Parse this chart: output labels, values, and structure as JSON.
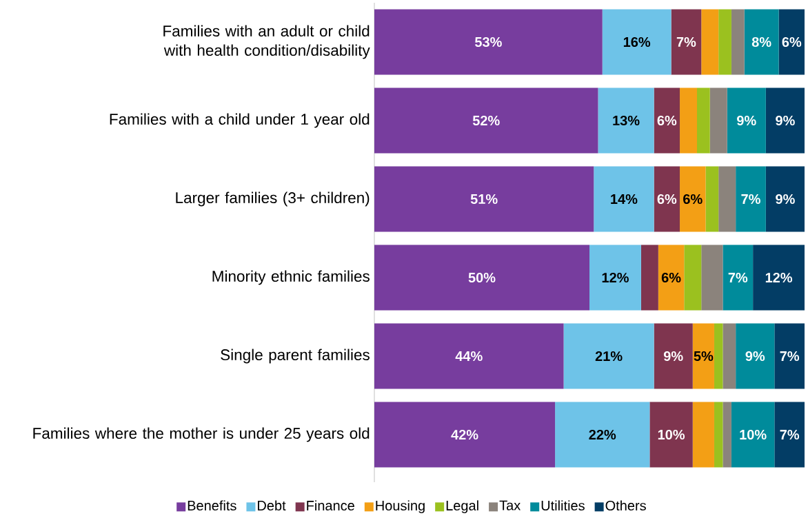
{
  "chart_data": {
    "type": "bar",
    "orientation": "horizontal",
    "stacked": true,
    "categories": [
      "Families with an adult or child with health condition/disability",
      "Families with a child under 1 year old",
      "Larger families (3+ children)",
      "Minority ethnic families",
      "Single parent families",
      "Families where the mother is under 25 years old"
    ],
    "series": [
      {
        "name": "Benefits",
        "color": "#773d9e",
        "values": [
          53,
          52,
          51,
          50,
          44,
          42
        ],
        "value_labels": [
          "53%",
          "52%",
          "51%",
          "50%",
          "44%",
          "42%"
        ]
      },
      {
        "name": "Debt",
        "color": "#6ec3e8",
        "values": [
          16,
          13,
          14,
          12,
          21,
          22
        ],
        "value_labels": [
          "16%",
          "13%",
          "14%",
          "12%",
          "21%",
          "22%"
        ]
      },
      {
        "name": "Finance",
        "color": "#7f354f",
        "values": [
          7,
          6,
          6,
          4,
          9,
          10
        ],
        "value_labels": [
          "7%",
          "6%",
          "6%",
          null,
          "9%",
          "10%"
        ]
      },
      {
        "name": "Housing",
        "color": "#f39f15",
        "values": [
          4,
          4,
          6,
          6,
          5,
          5
        ],
        "value_labels": [
          null,
          null,
          "6%",
          "6%",
          "5%",
          null
        ]
      },
      {
        "name": "Legal",
        "color": "#9bc11f",
        "values": [
          3,
          3,
          3,
          4,
          2,
          2
        ],
        "value_labels": [
          null,
          null,
          null,
          null,
          null,
          null
        ]
      },
      {
        "name": "Tax",
        "color": "#8b837c",
        "values": [
          3,
          4,
          4,
          5,
          3,
          2
        ],
        "value_labels": [
          null,
          null,
          null,
          null,
          null,
          null
        ]
      },
      {
        "name": "Utilities",
        "color": "#008b9b",
        "values": [
          8,
          9,
          7,
          7,
          9,
          10
        ],
        "value_labels": [
          "8%",
          "9%",
          "7%",
          "7%",
          "9%",
          "10%"
        ]
      },
      {
        "name": "Others",
        "color": "#033d65",
        "values": [
          6,
          9,
          9,
          12,
          7,
          7
        ],
        "value_labels": [
          "6%",
          "9%",
          "9%",
          "12%",
          "7%",
          "7%"
        ]
      }
    ],
    "tick_labels": "y",
    "legend": "bottom"
  }
}
